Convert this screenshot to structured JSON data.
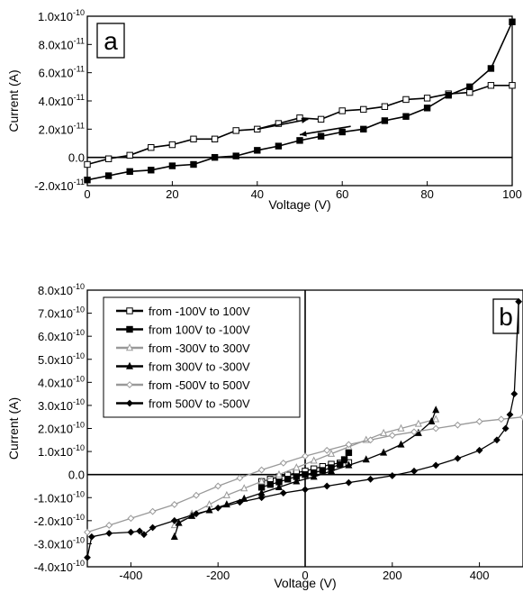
{
  "chart_data": [
    {
      "type": "line",
      "panel_label": "a",
      "xlabel": "Voltage (V)",
      "ylabel": "Current (A)",
      "xlim": [
        0,
        100
      ],
      "ylim": [
        -2e-11,
        1e-10
      ],
      "x_ticks": [
        0,
        20,
        40,
        60,
        80,
        100
      ],
      "x_tick_labels": [
        "0",
        "20",
        "40",
        "60",
        "80",
        "100"
      ],
      "y_ticks": [
        -2e-11,
        0,
        2e-11,
        4e-11,
        6e-11,
        8e-11,
        1e-10
      ],
      "y_tick_labels": [
        {
          "m": "-2.0x10",
          "e": "-11"
        },
        {
          "m": "0.0",
          "e": ""
        },
        {
          "m": "2.0x10",
          "e": "-11"
        },
        {
          "m": "4.0x10",
          "e": "-11"
        },
        {
          "m": "6.0x10",
          "e": "-11"
        },
        {
          "m": "8.0x10",
          "e": "-11"
        },
        {
          "m": "1.0x10",
          "e": "-10"
        }
      ],
      "zero_line": true,
      "arrows": [
        {
          "direction": "right",
          "from": [
            40,
            2e-11
          ],
          "to": [
            52,
            2.7e-11
          ]
        },
        {
          "direction": "left",
          "from": [
            62,
            2.2e-11
          ],
          "to": [
            50,
            1.6e-11
          ]
        }
      ],
      "series": [
        {
          "marker": "open-square",
          "x": [
            0,
            5,
            10,
            15,
            20,
            25,
            30,
            35,
            40,
            45,
            50,
            55,
            60,
            65,
            70,
            75,
            80,
            85,
            90,
            95,
            100
          ],
          "y": [
            -5e-12,
            -1e-12,
            1.5e-12,
            7e-12,
            9e-12,
            1.3e-11,
            1.3e-11,
            1.9e-11,
            2e-11,
            2.4e-11,
            2.8e-11,
            2.7e-11,
            3.3e-11,
            3.4e-11,
            3.6e-11,
            4.1e-11,
            4.2e-11,
            4.5e-11,
            4.6e-11,
            5.1e-11,
            5.1e-11
          ]
        },
        {
          "marker": "filled-square",
          "x": [
            0,
            5,
            10,
            15,
            20,
            25,
            30,
            35,
            40,
            45,
            50,
            55,
            60,
            65,
            70,
            75,
            80,
            85,
            90,
            95,
            100
          ],
          "y": [
            -1.6e-11,
            -1.3e-11,
            -1e-11,
            -9e-12,
            -6e-12,
            -5e-12,
            0,
            1e-12,
            5e-12,
            8e-12,
            1.2e-11,
            1.5e-11,
            1.8e-11,
            2e-11,
            2.6e-11,
            2.9e-11,
            3.5e-11,
            4.4e-11,
            5e-11,
            6.3e-11,
            9.6e-11
          ]
        }
      ]
    },
    {
      "type": "line",
      "panel_label": "b",
      "xlabel": "Voltage (V)",
      "ylabel": "Current (A)",
      "xlim": [
        -500,
        500
      ],
      "ylim": [
        -4e-10,
        8e-10
      ],
      "x_ticks": [
        -400,
        -200,
        0,
        200,
        400
      ],
      "x_tick_labels": [
        "-400",
        "-200",
        "0",
        "200",
        "400"
      ],
      "y_ticks": [
        -4e-10,
        -3e-10,
        -2e-10,
        -1e-10,
        0,
        1e-10,
        2e-10,
        3e-10,
        4e-10,
        5e-10,
        6e-10,
        7e-10,
        8e-10
      ],
      "y_tick_labels": [
        {
          "m": "-4.0x10",
          "e": "-10"
        },
        {
          "m": "-3.0x10",
          "e": "-10"
        },
        {
          "m": "-2.0x10",
          "e": "-10"
        },
        {
          "m": "-1.0x10",
          "e": "-10"
        },
        {
          "m": "0.0",
          "e": ""
        },
        {
          "m": "1.0x10",
          "e": "-10"
        },
        {
          "m": "2.0x10",
          "e": "-10"
        },
        {
          "m": "3.0x10",
          "e": "-10"
        },
        {
          "m": "4.0x10",
          "e": "-10"
        },
        {
          "m": "5.0x10",
          "e": "-10"
        },
        {
          "m": "6.0x10",
          "e": "-10"
        },
        {
          "m": "7.0x10",
          "e": "-10"
        },
        {
          "m": "8.0x10",
          "e": "-10"
        }
      ],
      "zero_line": true,
      "legend_position": "top-left",
      "series": [
        {
          "name": "from -100V to 100V",
          "marker": "open-square",
          "color": "#000000",
          "x": [
            -100,
            -80,
            -60,
            -40,
            -20,
            0,
            20,
            40,
            60,
            80,
            100
          ],
          "y": [
            -3e-11,
            -2e-11,
            -1e-11,
            -2e-12,
            8e-12,
            1.5e-11,
            2.5e-11,
            3.5e-11,
            4.5e-11,
            5e-11,
            5.2e-11
          ]
        },
        {
          "name": "from 100V to -100V",
          "marker": "filled-square",
          "color": "#000000",
          "x": [
            100,
            90,
            80,
            60,
            40,
            20,
            0,
            -20,
            -40,
            -60,
            -80,
            -100
          ],
          "y": [
            9.5e-11,
            6.5e-11,
            4.4e-11,
            3e-11,
            1.8e-11,
            8e-12,
            0,
            -9e-12,
            -2e-11,
            -3.2e-11,
            -4.3e-11,
            -5.5e-11
          ]
        },
        {
          "name": "from -300V to 300V",
          "marker": "open-triangle",
          "color": "#999999",
          "x": [
            -300,
            -260,
            -220,
            -180,
            -140,
            -100,
            -60,
            -20,
            20,
            60,
            100,
            140,
            180,
            220,
            260,
            300
          ],
          "y": [
            -2.2e-10,
            -1.7e-10,
            -1.3e-10,
            -9e-11,
            -6e-11,
            -3e-11,
            0,
            3e-11,
            6e-11,
            9e-11,
            1.2e-10,
            1.5e-10,
            1.8e-10,
            2e-10,
            2.2e-10,
            2.4e-10
          ]
        },
        {
          "name": "from 300V to -300V",
          "marker": "filled-triangle",
          "color": "#000000",
          "x": [
            300,
            290,
            260,
            220,
            180,
            140,
            100,
            60,
            20,
            -20,
            -60,
            -100,
            -140,
            -180,
            -220,
            -260,
            -290,
            -300
          ],
          "y": [
            2.8e-10,
            2.3e-10,
            1.8e-10,
            1.3e-10,
            9.5e-11,
            6.5e-11,
            4e-11,
            1.5e-11,
            -1e-11,
            -3e-11,
            -5.5e-11,
            -8e-11,
            -1.05e-10,
            -1.3e-10,
            -1.55e-10,
            -1.8e-10,
            -2.1e-10,
            -2.7e-10
          ]
        },
        {
          "name": "from -500V to 500V",
          "marker": "open-diamond",
          "color": "#999999",
          "x": [
            -500,
            -450,
            -400,
            -350,
            -300,
            -250,
            -200,
            -150,
            -100,
            -50,
            0,
            50,
            100,
            150,
            200,
            250,
            300,
            350,
            400,
            450,
            500
          ],
          "y": [
            -2.5e-10,
            -2.2e-10,
            -1.9e-10,
            -1.6e-10,
            -1.3e-10,
            -9e-11,
            -5e-11,
            -1.5e-11,
            2e-11,
            5e-11,
            8e-11,
            1.05e-10,
            1.3e-10,
            1.5e-10,
            1.7e-10,
            1.85e-10,
            2e-10,
            2.15e-10,
            2.3e-10,
            2.4e-10,
            2.5e-10
          ]
        },
        {
          "name": "from 500V to -500V",
          "marker": "filled-diamond",
          "color": "#000000",
          "x": [
            490,
            480,
            470,
            460,
            440,
            400,
            350,
            300,
            250,
            200,
            150,
            100,
            50,
            0,
            -50,
            -100,
            -150,
            -200,
            -250,
            -300,
            -350,
            -370,
            -380,
            -400,
            -450,
            -490,
            -500
          ],
          "y": [
            7.5e-10,
            3.5e-10,
            2.6e-10,
            2e-10,
            1.5e-10,
            1.05e-10,
            7e-11,
            4e-11,
            1.5e-11,
            -5e-12,
            -2e-11,
            -3.5e-11,
            -5e-11,
            -6.5e-11,
            -8e-11,
            -1e-10,
            -1.2e-10,
            -1.45e-10,
            -1.7e-10,
            -2e-10,
            -2.3e-10,
            -2.6e-10,
            -2.45e-10,
            -2.5e-10,
            -2.55e-10,
            -2.7e-10,
            -3.6e-10
          ]
        }
      ]
    }
  ]
}
